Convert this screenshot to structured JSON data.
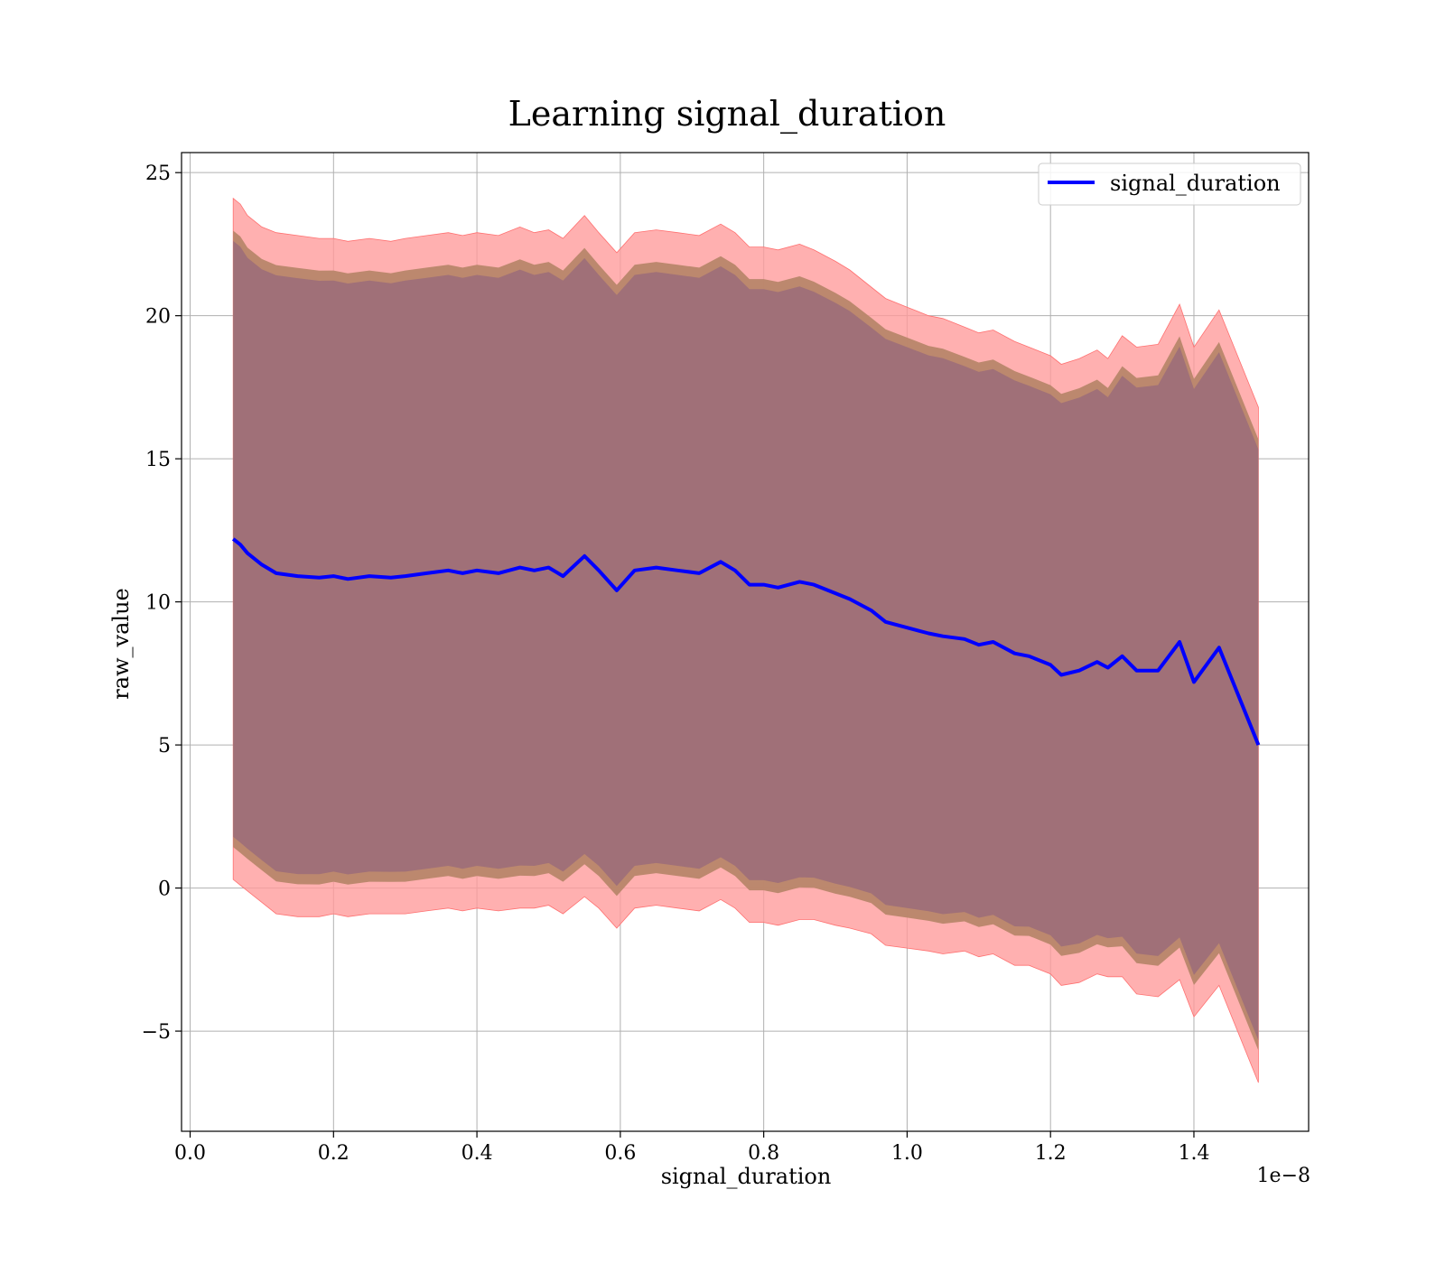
{
  "chart_data": {
    "type": "area",
    "title": "Learning signal_duration",
    "xlabel": "signal_duration",
    "ylabel": "raw_value",
    "x_scale_label": "1e−8",
    "x_ticks": [
      "0.0",
      "0.2",
      "0.4",
      "0.6",
      "0.8",
      "1.0",
      "1.2",
      "1.4"
    ],
    "x_tick_values": [
      0.0,
      0.2,
      0.4,
      0.6,
      0.8,
      1.0,
      1.2,
      1.4
    ],
    "y_ticks": [
      "−5",
      "0",
      "5",
      "10",
      "15",
      "20",
      "25"
    ],
    "y_tick_values": [
      -5,
      0,
      5,
      10,
      15,
      20,
      25
    ],
    "xlim": [
      -0.012,
      1.56
    ],
    "ylim": [
      -8.5,
      25.7
    ],
    "x_unit_scale": "1e-8",
    "grid": true,
    "legend_position": "top-right",
    "colors": {
      "line": "#0000ff",
      "outer_band": "#ff9a9a",
      "middle_band": "#b8866a",
      "inner_band": "#a07078"
    },
    "series": [
      {
        "name": "signal_duration",
        "role": "mean",
        "x": [
          0.06,
          0.07,
          0.08,
          0.1,
          0.12,
          0.15,
          0.18,
          0.2,
          0.22,
          0.25,
          0.28,
          0.3,
          0.33,
          0.36,
          0.38,
          0.4,
          0.43,
          0.46,
          0.48,
          0.5,
          0.52,
          0.55,
          0.57,
          0.595,
          0.62,
          0.65,
          0.68,
          0.71,
          0.74,
          0.76,
          0.78,
          0.8,
          0.82,
          0.85,
          0.87,
          0.9,
          0.92,
          0.95,
          0.97,
          1.0,
          1.03,
          1.05,
          1.08,
          1.1,
          1.12,
          1.15,
          1.17,
          1.2,
          1.215,
          1.24,
          1.265,
          1.28,
          1.3,
          1.32,
          1.35,
          1.38,
          1.4,
          1.435,
          1.49
        ],
        "y": [
          12.2,
          12.0,
          11.7,
          11.3,
          11.0,
          10.9,
          10.85,
          10.9,
          10.8,
          10.9,
          10.85,
          10.9,
          11.0,
          11.1,
          11.0,
          11.1,
          11.0,
          11.2,
          11.1,
          11.2,
          10.9,
          11.6,
          11.1,
          10.4,
          11.1,
          11.2,
          11.1,
          11.0,
          11.4,
          11.1,
          10.6,
          10.6,
          10.5,
          10.7,
          10.6,
          10.3,
          10.1,
          9.7,
          9.3,
          9.1,
          8.9,
          8.8,
          8.7,
          8.5,
          8.6,
          8.2,
          8.1,
          7.8,
          7.45,
          7.6,
          7.9,
          7.7,
          8.1,
          7.6,
          7.6,
          8.6,
          7.2,
          8.4,
          5.0
        ]
      },
      {
        "name": "",
        "role": "outer_band",
        "x": [
          0.06,
          0.07,
          0.08,
          0.1,
          0.12,
          0.15,
          0.18,
          0.2,
          0.22,
          0.25,
          0.28,
          0.3,
          0.33,
          0.36,
          0.38,
          0.4,
          0.43,
          0.46,
          0.48,
          0.5,
          0.52,
          0.55,
          0.57,
          0.595,
          0.62,
          0.65,
          0.68,
          0.71,
          0.74,
          0.76,
          0.78,
          0.8,
          0.82,
          0.85,
          0.87,
          0.9,
          0.92,
          0.95,
          0.97,
          1.0,
          1.03,
          1.05,
          1.08,
          1.1,
          1.12,
          1.15,
          1.17,
          1.2,
          1.215,
          1.24,
          1.265,
          1.28,
          1.3,
          1.32,
          1.35,
          1.38,
          1.4,
          1.435,
          1.49
        ],
        "upper": [
          24.1,
          23.9,
          23.5,
          23.1,
          22.9,
          22.8,
          22.7,
          22.7,
          22.6,
          22.7,
          22.6,
          22.7,
          22.8,
          22.9,
          22.8,
          22.9,
          22.8,
          23.1,
          22.9,
          23.0,
          22.7,
          23.5,
          22.9,
          22.2,
          22.9,
          23.0,
          22.9,
          22.8,
          23.2,
          22.9,
          22.4,
          22.4,
          22.3,
          22.5,
          22.3,
          21.9,
          21.6,
          21.0,
          20.6,
          20.3,
          20.0,
          19.9,
          19.6,
          19.4,
          19.5,
          19.1,
          18.9,
          18.6,
          18.3,
          18.5,
          18.8,
          18.5,
          19.3,
          18.9,
          19.0,
          20.4,
          18.9,
          20.2,
          16.8
        ]
      }
    ]
  }
}
